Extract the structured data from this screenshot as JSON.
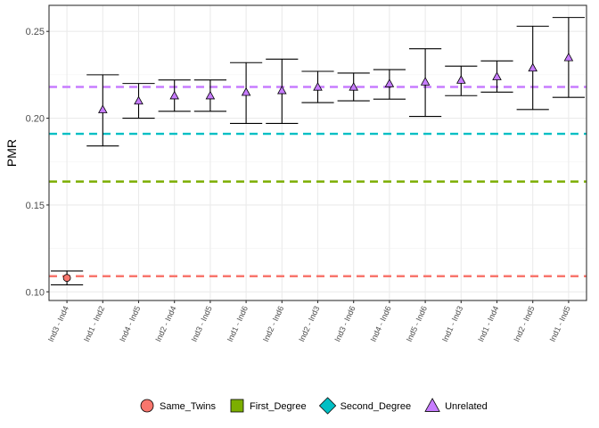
{
  "chart_data": {
    "type": "scatter",
    "title": "",
    "xlabel": "",
    "ylabel": "PMR",
    "ylim": [
      0.095,
      0.265
    ],
    "yticks": [
      0.1,
      0.15,
      0.2,
      0.25
    ],
    "ytick_labels": [
      "0.10",
      "0.15",
      "0.20",
      "0.25"
    ],
    "grid": true,
    "categories": [
      "Ind3 - Ind4",
      "Ind1 - Ind2",
      "Ind4 - Ind5",
      "Ind2 - Ind4",
      "Ind3 - Ind5",
      "Ind1 - Ind6",
      "Ind2 - Ind6",
      "Ind2 - Ind3",
      "Ind3 - Ind6",
      "Ind4 - Ind6",
      "Ind5 - Ind6",
      "Ind1 - Ind3",
      "Ind1 - Ind4",
      "Ind2 - Ind5",
      "Ind1 - Ind5"
    ],
    "points": [
      {
        "x": "Ind3 - Ind4",
        "y": 0.108,
        "ymin": 0.104,
        "ymax": 0.112,
        "group": "Same_Twins"
      },
      {
        "x": "Ind1 - Ind2",
        "y": 0.205,
        "ymin": 0.184,
        "ymax": 0.225,
        "group": "Unrelated"
      },
      {
        "x": "Ind4 - Ind5",
        "y": 0.21,
        "ymin": 0.2,
        "ymax": 0.22,
        "group": "Unrelated"
      },
      {
        "x": "Ind2 - Ind4",
        "y": 0.213,
        "ymin": 0.204,
        "ymax": 0.222,
        "group": "Unrelated"
      },
      {
        "x": "Ind3 - Ind5",
        "y": 0.213,
        "ymin": 0.204,
        "ymax": 0.222,
        "group": "Unrelated"
      },
      {
        "x": "Ind1 - Ind6",
        "y": 0.215,
        "ymin": 0.197,
        "ymax": 0.232,
        "group": "Unrelated"
      },
      {
        "x": "Ind2 - Ind6",
        "y": 0.216,
        "ymin": 0.197,
        "ymax": 0.234,
        "group": "Unrelated"
      },
      {
        "x": "Ind2 - Ind3",
        "y": 0.218,
        "ymin": 0.209,
        "ymax": 0.227,
        "group": "Unrelated"
      },
      {
        "x": "Ind3 - Ind6",
        "y": 0.218,
        "ymin": 0.21,
        "ymax": 0.226,
        "group": "Unrelated"
      },
      {
        "x": "Ind4 - Ind6",
        "y": 0.22,
        "ymin": 0.211,
        "ymax": 0.228,
        "group": "Unrelated"
      },
      {
        "x": "Ind5 - Ind6",
        "y": 0.221,
        "ymin": 0.201,
        "ymax": 0.24,
        "group": "Unrelated"
      },
      {
        "x": "Ind1 - Ind3",
        "y": 0.222,
        "ymin": 0.213,
        "ymax": 0.23,
        "group": "Unrelated"
      },
      {
        "x": "Ind1 - Ind4",
        "y": 0.224,
        "ymin": 0.215,
        "ymax": 0.233,
        "group": "Unrelated"
      },
      {
        "x": "Ind2 - Ind5",
        "y": 0.229,
        "ymin": 0.205,
        "ymax": 0.253,
        "group": "Unrelated"
      },
      {
        "x": "Ind1 - Ind5",
        "y": 0.235,
        "ymin": 0.212,
        "ymax": 0.258,
        "group": "Unrelated"
      }
    ],
    "reference_lines": [
      {
        "group": "Same_Twins",
        "y": 0.109,
        "color": "#F8766D"
      },
      {
        "group": "First_Degree",
        "y": 0.1635,
        "color": "#7CAE00"
      },
      {
        "group": "Second_Degree",
        "y": 0.191,
        "color": "#00BFC4"
      },
      {
        "group": "Unrelated",
        "y": 0.218,
        "color": "#C77CFF"
      }
    ],
    "legend": {
      "placement": "bottom",
      "items": [
        {
          "label": "Same_Twins",
          "shape": "circle",
          "color": "#F8766D"
        },
        {
          "label": "First_Degree",
          "shape": "square",
          "color": "#7CAE00"
        },
        {
          "label": "Second_Degree",
          "shape": "diamond",
          "color": "#00BFC4"
        },
        {
          "label": "Unrelated",
          "shape": "triangle",
          "color": "#C77CFF"
        }
      ]
    }
  }
}
